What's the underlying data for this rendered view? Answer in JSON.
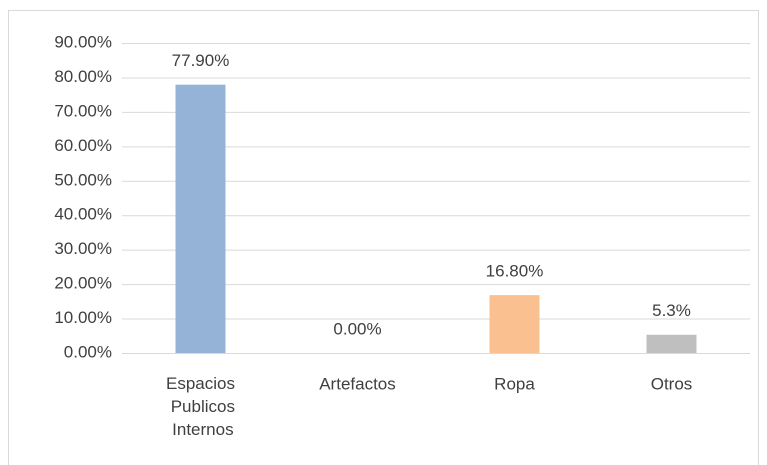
{
  "chart_data": {
    "type": "bar",
    "categories": [
      "Espacios Publicos Internos",
      "Artefactos",
      "Ropa",
      "Otros"
    ],
    "values": [
      77.9,
      0,
      16.8,
      5.3
    ],
    "value_labels": [
      "77.90%",
      "0.00%",
      "16.80%",
      "5.3%"
    ],
    "colors": [
      "#95b3d7",
      "#95b3d7",
      "#fac090",
      "#bfbfbf"
    ],
    "ylim": [
      0,
      90
    ],
    "yticks": [
      {
        "value": 0,
        "label": "0.00%"
      },
      {
        "value": 10,
        "label": "10.00%"
      },
      {
        "value": 20,
        "label": "20.00%"
      },
      {
        "value": 30,
        "label": "30.00%"
      },
      {
        "value": 40,
        "label": "40.00%"
      },
      {
        "value": 50,
        "label": "50.00%"
      },
      {
        "value": 60,
        "label": "60.00%"
      },
      {
        "value": 70,
        "label": "70.00%"
      },
      {
        "value": 80,
        "label": "80.00%"
      },
      {
        "value": 90,
        "label": "90.00%"
      }
    ],
    "grid": true
  }
}
